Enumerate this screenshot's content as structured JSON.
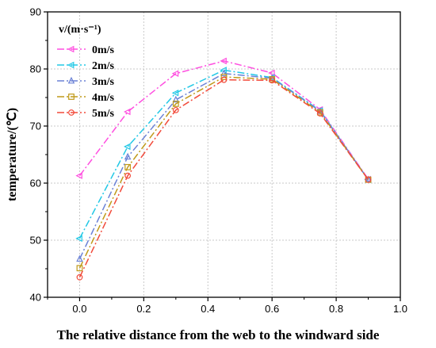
{
  "chart_data": {
    "type": "line",
    "title": "",
    "xlabel": "The relative distance from the web to the windward side",
    "ylabel": "temperature/(℃)",
    "xlim": [
      -0.1,
      1.0
    ],
    "ylim": [
      40,
      90
    ],
    "xticks": [
      0.0,
      0.2,
      0.4,
      0.6,
      0.8,
      1.0
    ],
    "xtick_labels": [
      "0.0",
      "0.2",
      "0.4",
      "0.6",
      "0.8",
      "1.0"
    ],
    "yticks": [
      40,
      50,
      60,
      70,
      80,
      90
    ],
    "ytick_labels": [
      "40",
      "50",
      "60",
      "70",
      "80",
      "90"
    ],
    "grid": true,
    "legend_title": "v/(m·s⁻¹)",
    "legend_position": "top-left",
    "x": [
      0.0,
      0.15,
      0.3,
      0.45,
      0.6,
      0.75,
      0.9
    ],
    "series": [
      {
        "name": "0m/s",
        "color": "#ff4fe0",
        "marker": "triangle-left",
        "dash": "dash-dot",
        "values": [
          61.3,
          72.5,
          79.2,
          81.4,
          79.3,
          72.9,
          60.7
        ]
      },
      {
        "name": "2m/s",
        "color": "#22c8e6",
        "marker": "triangle-left",
        "dash": "dash-dot",
        "values": [
          50.3,
          66.4,
          75.8,
          79.8,
          78.5,
          72.7,
          60.6
        ]
      },
      {
        "name": "3m/s",
        "color": "#6b82d6",
        "marker": "triangle-up",
        "dash": "dash-dot",
        "values": [
          46.7,
          64.6,
          74.6,
          79.2,
          78.4,
          72.6,
          60.6
        ]
      },
      {
        "name": "4m/s",
        "color": "#c09a1a",
        "marker": "square",
        "dash": "dash-dot",
        "values": [
          45.1,
          62.8,
          73.9,
          78.6,
          78.2,
          72.4,
          60.6
        ]
      },
      {
        "name": "5m/s",
        "color": "#f24a3a",
        "marker": "circle",
        "dash": "dash-dot",
        "values": [
          43.5,
          61.3,
          72.8,
          78.1,
          78.0,
          72.2,
          60.6
        ]
      }
    ]
  }
}
